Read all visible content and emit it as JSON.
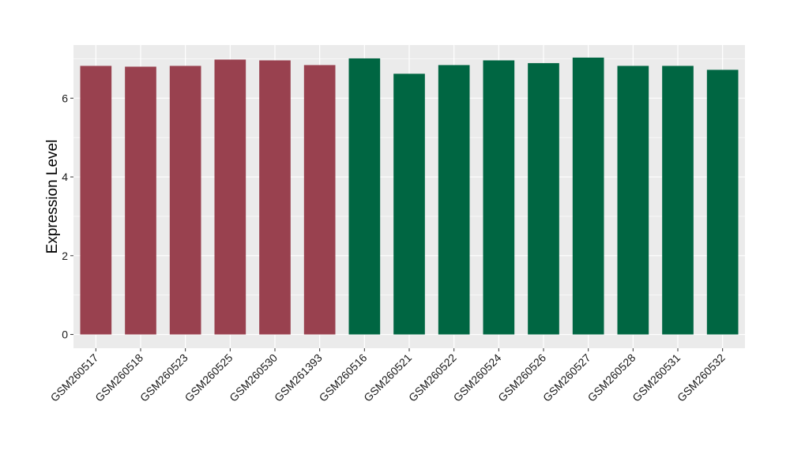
{
  "chart_data": {
    "type": "bar",
    "title": "",
    "xlabel": "",
    "ylabel": "Expression Level",
    "ylim": [
      -0.35,
      7.35
    ],
    "yticks": [
      0,
      2,
      4,
      6
    ],
    "grid": true,
    "legend": "none",
    "panel_background": "#ebebeb",
    "grid_color": "#ffffff",
    "categories": [
      "GSM260517",
      "GSM260518",
      "GSM260523",
      "GSM260525",
      "GSM260530",
      "GSM261393",
      "GSM260516",
      "GSM260521",
      "GSM260522",
      "GSM260524",
      "GSM260526",
      "GSM260527",
      "GSM260528",
      "GSM260531",
      "GSM260532"
    ],
    "values": [
      6.82,
      6.8,
      6.82,
      6.98,
      6.96,
      6.84,
      7.01,
      6.62,
      6.84,
      6.96,
      6.89,
      7.03,
      6.82,
      6.82,
      6.72
    ],
    "bar_colors": [
      "#99414f",
      "#99414f",
      "#99414f",
      "#99414f",
      "#99414f",
      "#99414f",
      "#006642",
      "#006642",
      "#006642",
      "#006642",
      "#006642",
      "#006642",
      "#006642",
      "#006642",
      "#006642"
    ]
  }
}
